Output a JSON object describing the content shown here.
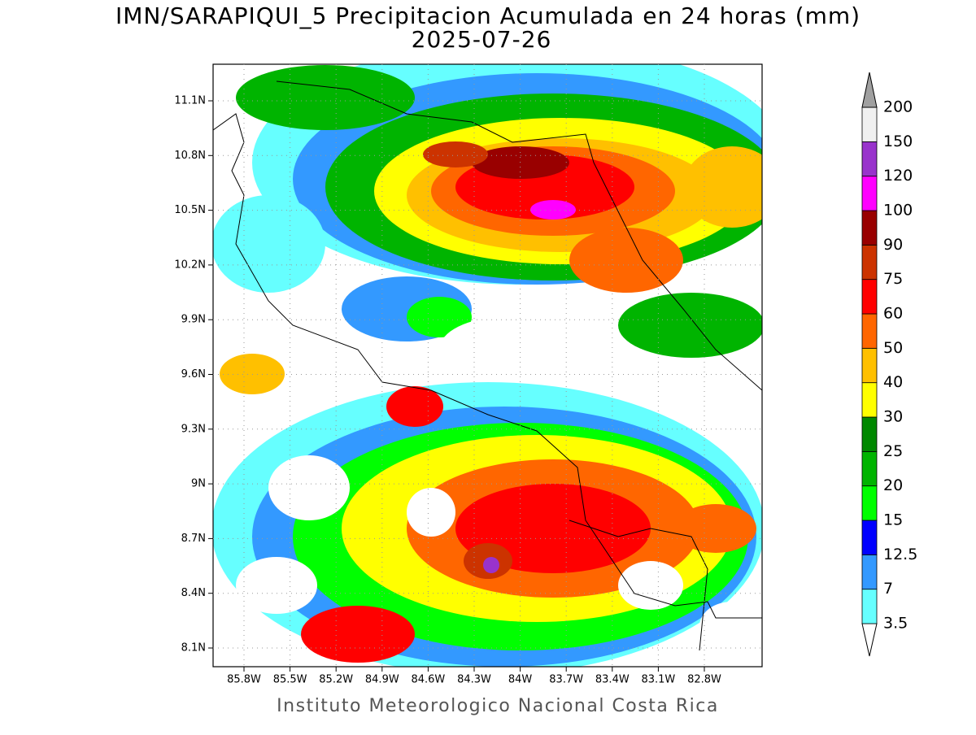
{
  "title": "IMN/SARAPIQUI_5 Precipitacion Acumulada en 24 horas (mm)",
  "subtitle": "2025-07-26",
  "map": {
    "lat_ticks": [
      "11.1N",
      "10.8N",
      "10.5N",
      "10.2N",
      "9.9N",
      "9.6N",
      "9.3N",
      "9N",
      "8.7N",
      "8.4N",
      "8.1N"
    ],
    "lon_ticks": [
      "85.8W",
      "85.5W",
      "85.2W",
      "84.9W",
      "84.6W",
      "84.3W",
      "84W",
      "83.7W",
      "83.4W",
      "83.1W",
      "82.8W"
    ]
  },
  "colorbar": {
    "levels": [
      3.5,
      7,
      12.5,
      15,
      20,
      25,
      30,
      40,
      50,
      60,
      75,
      90,
      100,
      120,
      150,
      200
    ],
    "colors": [
      "#ffffff",
      "#66ffff",
      "#3399ff",
      "#0000ff",
      "#00ff00",
      "#00b400",
      "#008800",
      "#ffff00",
      "#ffc000",
      "#ff6600",
      "#ff0000",
      "#cc3300",
      "#990000",
      "#ff00ff",
      "#9933cc",
      "#f0f0f0",
      "#a0a0a0"
    ]
  },
  "footer": "Instituto Meteorologico Nacional Costa Rica"
}
